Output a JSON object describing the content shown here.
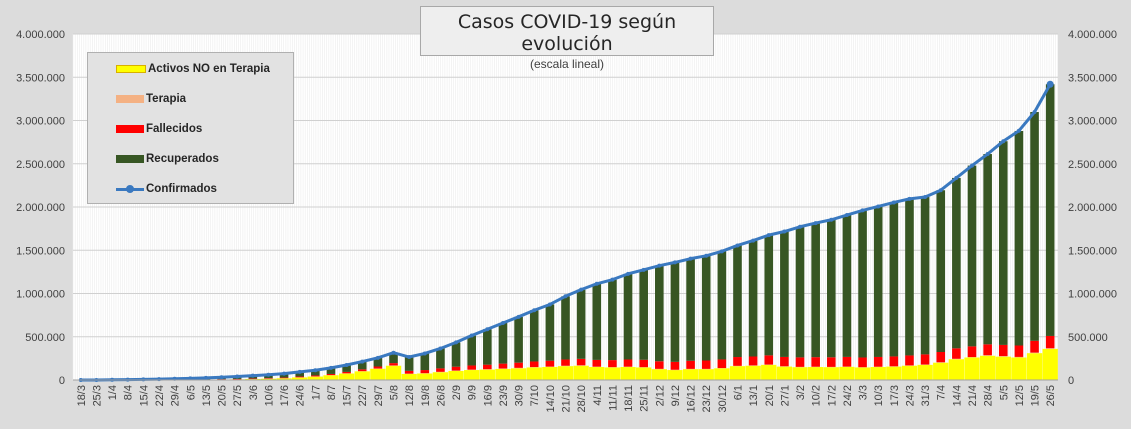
{
  "chart_data": {
    "type": "bar",
    "title": "Casos COVID-19 según evolución",
    "subtitle": "(escala lineal)",
    "ylim": [
      0,
      4000000
    ],
    "y_ticks": [
      "0",
      "500.000",
      "1.000.000",
      "1.500.000",
      "2.000.000",
      "2.500.000",
      "3.000.000",
      "3.500.000",
      "4.000.000"
    ],
    "x": [
      "18/3",
      "25/3",
      "1/4",
      "8/4",
      "15/4",
      "22/4",
      "29/4",
      "6/5",
      "13/5",
      "20/5",
      "27/5",
      "3/6",
      "10/6",
      "17/6",
      "24/6",
      "1/7",
      "8/7",
      "15/7",
      "22/7",
      "29/7",
      "5/8",
      "12/8",
      "19/8",
      "26/8",
      "2/9",
      "9/9",
      "16/9",
      "23/9",
      "30/9",
      "7/10",
      "14/10",
      "21/10",
      "28/10",
      "4/11",
      "11/11",
      "18/11",
      "25/11",
      "2/12",
      "9/12",
      "16/12",
      "23/12",
      "30/12",
      "6/1",
      "13/1",
      "20/1",
      "27/1",
      "3/2",
      "10/2",
      "17/2",
      "24/2",
      "3/3",
      "10/3",
      "17/3",
      "24/3",
      "31/3",
      "7/4",
      "14/4",
      "21/4",
      "28/4",
      "5/5",
      "12/5",
      "19/5",
      "26/5"
    ],
    "legend_placement": "top-left",
    "grid": true,
    "series": [
      {
        "name": "Activos NO en Terapia",
        "color": "#ffff00",
        "values": [
          0,
          0,
          1000,
          1000,
          1500,
          2000,
          2500,
          3000,
          4000,
          6000,
          8000,
          12000,
          15000,
          20000,
          30000,
          40000,
          55000,
          75000,
          100000,
          130000,
          165000,
          70000,
          75000,
          90000,
          105000,
          115000,
          120000,
          128000,
          135000,
          145000,
          150000,
          160000,
          165000,
          150000,
          145000,
          150000,
          145000,
          125000,
          115000,
          125000,
          125000,
          135000,
          160000,
          165000,
          175000,
          155000,
          148000,
          150000,
          148000,
          152000,
          145000,
          150000,
          155000,
          165000,
          175000,
          200000,
          240000,
          260000,
          280000,
          270000,
          260000,
          310000,
          360000
        ]
      },
      {
        "name": "Terapia",
        "color": "#f4b183",
        "values": [
          0,
          0,
          0,
          0,
          0,
          100,
          100,
          200,
          300,
          400,
          500,
          600,
          800,
          1100,
          1300,
          1600,
          2000,
          2400,
          2800,
          3100,
          3400,
          3700,
          4000,
          4300,
          4600,
          4900,
          5100,
          5300,
          5400,
          5300,
          5100,
          4800,
          4600,
          4400,
          4200,
          4000,
          3800,
          3600,
          3500,
          3400,
          3400,
          3500,
          3600,
          3700,
          3800,
          3700,
          3600,
          3500,
          3400,
          3300,
          3300,
          3400,
          3500,
          3700,
          4200,
          4800,
          5300,
          5800,
          6200,
          6600,
          6800,
          7000,
          7100
        ]
      },
      {
        "name": "Fallecidos",
        "color": "#ff0000",
        "values": [
          0,
          20,
          150,
          500,
          800,
          1100,
          1500,
          1900,
          2400,
          3000,
          3700,
          4600,
          5800,
          7100,
          8800,
          11000,
          13000,
          16000,
          20000,
          23000,
          27000,
          32000,
          36000,
          40000,
          44000,
          48000,
          52000,
          56000,
          60000,
          64000,
          68000,
          72000,
          75000,
          78000,
          81000,
          83000,
          85000,
          88000,
          91000,
          94000,
          97000,
          99000,
          102000,
          103000,
          106000,
          108000,
          110000,
          110500,
          111000,
          111500,
          112000,
          113000,
          114000,
          115000,
          117000,
          119000,
          121000,
          123000,
          126000,
          129000,
          132000,
          136000,
          142000
        ]
      },
      {
        "name": "Recuperados",
        "color": "#375623",
        "values": [
          0,
          30,
          1000,
          3000,
          5000,
          7500,
          10500,
          14000,
          18000,
          23000,
          28000,
          33000,
          39000,
          46000,
          54000,
          60000,
          70000,
          80000,
          90000,
          100000,
          120000,
          160000,
          192000,
          230000,
          280000,
          345000,
          410000,
          470000,
          530000,
          592000,
          650000,
          730000,
          800000,
          880000,
          930000,
          990000,
          1040000,
          1105000,
          1150000,
          1180000,
          1210000,
          1250000,
          1290000,
          1340000,
          1390000,
          1450000,
          1510000,
          1550000,
          1590000,
          1640000,
          1700000,
          1740000,
          1780000,
          1810000,
          1820000,
          1870000,
          1970000,
          2090000,
          2200000,
          2355000,
          2480000,
          2645000,
          2910000
        ]
      },
      {
        "name": "Confirmados",
        "color": "#3a79c0",
        "type": "line",
        "values": [
          0,
          50,
          2150,
          4500,
          7300,
          10700,
          14600,
          19100,
          24700,
          32400,
          40200,
          50200,
          60600,
          74200,
          94100,
          112600,
          140000,
          173400,
          212800,
          256100,
          315400,
          265700,
          307000,
          364300,
          434600,
          513800,
          587100,
          659300,
          730400,
          806300,
          873100,
          967600,
          1044600,
          1112400,
          1160200,
          1227000,
          1273800,
          1321600,
          1359500,
          1402800,
          1435900,
          1487500,
          1555600,
          1611700,
          1674800,
          1716700,
          1771600,
          1814000,
          1852400,
          1906800,
          1960300,
          2006400,
          2052500,
          2093700,
          2116200,
          2193800,
          2336300,
          2478800,
          2612200,
          2760600,
          2880800,
          3098000,
          3419100
        ]
      }
    ]
  }
}
